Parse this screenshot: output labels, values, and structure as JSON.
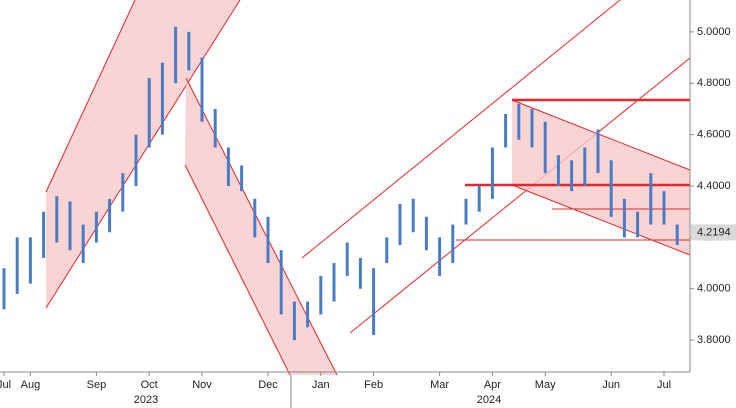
{
  "chart_data": {
    "type": "range",
    "categories": [
      "Jul",
      null,
      "Aug",
      null,
      null,
      null,
      null,
      "Sep",
      null,
      null,
      null,
      "Oct",
      null,
      null,
      null,
      "Nov",
      null,
      null,
      null,
      null,
      "Dec",
      null,
      null,
      null,
      "Jan",
      null,
      null,
      null,
      "Feb",
      null,
      null,
      null,
      null,
      "Mar",
      null,
      null,
      null,
      "Apr",
      null,
      null,
      null,
      "May",
      null,
      null,
      null,
      null,
      "Jun",
      null,
      null,
      null,
      "Jul",
      null
    ],
    "high": [
      4.08,
      4.2,
      4.2,
      4.3,
      4.36,
      4.34,
      4.25,
      4.3,
      4.35,
      4.45,
      4.6,
      4.82,
      4.88,
      5.02,
      5.0,
      4.9,
      4.7,
      4.55,
      4.48,
      4.35,
      4.28,
      4.15,
      3.95,
      3.95,
      4.05,
      4.1,
      4.18,
      4.12,
      4.08,
      4.2,
      4.33,
      4.35,
      4.28,
      4.2,
      4.25,
      4.35,
      4.4,
      4.55,
      4.68,
      4.72,
      4.7,
      4.65,
      4.52,
      4.5,
      4.55,
      4.62,
      4.5,
      4.35,
      4.3,
      4.45,
      4.38,
      4.25
    ],
    "low": [
      3.92,
      3.98,
      4.02,
      4.12,
      4.18,
      4.15,
      4.1,
      4.18,
      4.22,
      4.3,
      4.4,
      4.55,
      4.6,
      4.8,
      4.85,
      4.65,
      4.55,
      4.4,
      4.38,
      4.2,
      4.1,
      3.9,
      3.8,
      3.85,
      3.9,
      3.95,
      4.05,
      4.0,
      3.82,
      4.1,
      4.17,
      4.22,
      4.15,
      4.05,
      4.1,
      4.25,
      4.3,
      4.35,
      4.55,
      4.58,
      4.55,
      4.45,
      4.4,
      4.38,
      4.4,
      4.45,
      4.28,
      4.2,
      4.2,
      4.25,
      4.25,
      4.17
    ],
    "color": "#4a7cc6",
    "ylim": [
      3.676,
      5.124
    ],
    "yticks": [
      {
        "value": 3.8,
        "label": "3.8000"
      },
      {
        "value": 4.0,
        "label": "4.0000"
      },
      {
        "value": 4.2,
        "label": "4.2000"
      },
      {
        "value": 4.4,
        "label": "4.4000"
      },
      {
        "value": 4.6,
        "label": "4.6000"
      },
      {
        "value": 4.8,
        "label": "4.8000"
      },
      {
        "value": 5.0,
        "label": "5.0000"
      }
    ],
    "last_value": 4.2194,
    "year_labels": [
      "2023",
      "2024"
    ]
  }
}
